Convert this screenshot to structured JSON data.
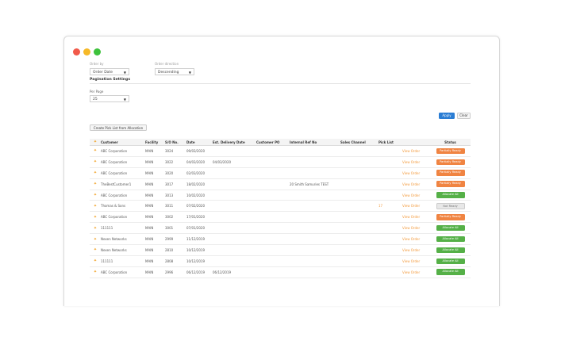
{
  "filters": {
    "order_by_label": "Order by",
    "order_by_value": "Order Date",
    "order_direction_label": "Order direction",
    "order_direction_value": "Descending",
    "pagination_title": "Pagination Settings",
    "per_page_label": "Per Page",
    "per_page_value": "25"
  },
  "actions": {
    "apply": "Apply",
    "clear": "Clear",
    "create_pick_list": "Create Pick List from Allocation"
  },
  "table": {
    "columns": [
      "",
      "Customer",
      "Facility",
      "S/O No.",
      "Date",
      "Est. Delivery Date",
      "Customer PO",
      "Internal Ref No",
      "Sales Channel",
      "Pick List",
      "",
      "Status"
    ],
    "view_label": "View Order",
    "rows": [
      {
        "customer": "ABC Corporation",
        "facility": "MAIN",
        "so": "3024",
        "date": "09/03/2020",
        "est": "",
        "po": "",
        "ref": "",
        "channel": "",
        "pick": "",
        "status": "Partially Ready",
        "status_type": "partial"
      },
      {
        "customer": "ABC Corporation",
        "facility": "MAIN",
        "so": "3022",
        "date": "04/03/2020",
        "est": "04/03/2020",
        "po": "",
        "ref": "",
        "channel": "",
        "pick": "",
        "status": "Partially Ready",
        "status_type": "partial"
      },
      {
        "customer": "ABC Corporation",
        "facility": "MAIN",
        "so": "3020",
        "date": "02/03/2020",
        "est": "",
        "po": "",
        "ref": "",
        "channel": "",
        "pick": "",
        "status": "Partially Ready",
        "status_type": "partial"
      },
      {
        "customer": "TheBestCustomer1",
        "facility": "MAIN",
        "so": "3017",
        "date": "18/02/2020",
        "est": "",
        "po": "",
        "ref": "20 Smith Samuries TEST",
        "channel": "",
        "pick": "",
        "status": "Partially Ready",
        "status_type": "partial"
      },
      {
        "customer": "ABC Corporation",
        "facility": "MAIN",
        "so": "3013",
        "date": "10/02/2020",
        "est": "",
        "po": "",
        "ref": "",
        "channel": "",
        "pick": "",
        "status": "Allocate All",
        "status_type": "alloc"
      },
      {
        "customer": "Thomas & Sons",
        "facility": "MAIN",
        "so": "3011",
        "date": "07/02/2020",
        "est": "",
        "po": "",
        "ref": "",
        "channel": "",
        "pick": "17",
        "status": "Not Ready",
        "status_type": "notready"
      },
      {
        "customer": "ABC Corporation",
        "facility": "MAIN",
        "so": "3002",
        "date": "17/01/2020",
        "est": "",
        "po": "",
        "ref": "",
        "channel": "",
        "pick": "",
        "status": "Partially Ready",
        "status_type": "partial"
      },
      {
        "customer": "111111",
        "facility": "MAIN",
        "so": "3001",
        "date": "07/01/2020",
        "est": "",
        "po": "",
        "ref": "",
        "channel": "",
        "pick": "",
        "status": "Allocate All",
        "status_type": "alloc"
      },
      {
        "customer": "Nexen Networks",
        "facility": "MAIN",
        "so": "2999",
        "date": "11/12/2019",
        "est": "",
        "po": "",
        "ref": "",
        "channel": "",
        "pick": "",
        "status": "Allocate All",
        "status_type": "alloc"
      },
      {
        "customer": "Nexen Networks",
        "facility": "MAIN",
        "so": "2810",
        "date": "10/12/2019",
        "est": "",
        "po": "",
        "ref": "",
        "channel": "",
        "pick": "",
        "status": "Allocate All",
        "status_type": "alloc"
      },
      {
        "customer": "111111",
        "facility": "MAIN",
        "so": "2808",
        "date": "10/12/2019",
        "est": "",
        "po": "",
        "ref": "",
        "channel": "",
        "pick": "",
        "status": "Allocate All",
        "status_type": "alloc"
      },
      {
        "customer": "ABC Corporation",
        "facility": "MAIN",
        "so": "2996",
        "date": "06/12/2019",
        "est": "06/12/2019",
        "po": "",
        "ref": "",
        "channel": "",
        "pick": "",
        "status": "Allocate All",
        "status_type": "alloc"
      }
    ]
  },
  "colors": {
    "partial": "#f08442",
    "alloc": "#55b047",
    "link": "#f39a3c",
    "apply": "#2a7dd4"
  }
}
